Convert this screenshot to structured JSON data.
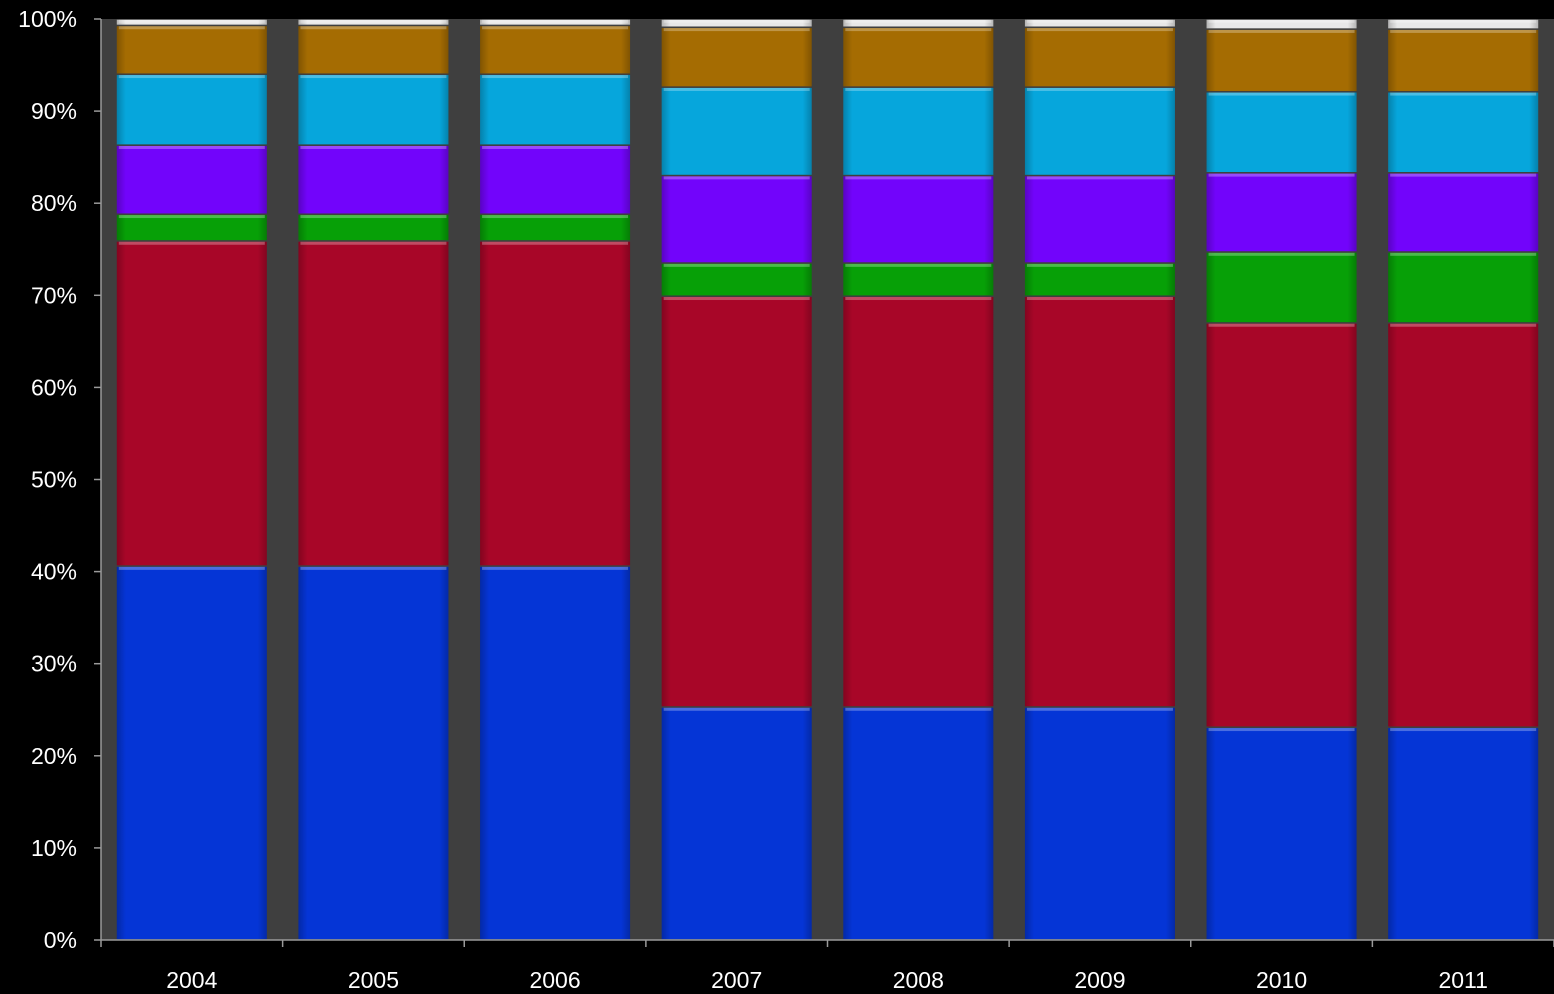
{
  "chart_data": {
    "type": "bar",
    "stacked": true,
    "percent_scale": true,
    "title": "",
    "xlabel": "",
    "ylabel": "",
    "ylim": [
      0,
      100
    ],
    "y_tick_labels": [
      "0%",
      "10%",
      "20%",
      "30%",
      "40%",
      "50%",
      "60%",
      "70%",
      "80%",
      "90%",
      "100%"
    ],
    "categories": [
      "2004",
      "2005",
      "2006",
      "2007",
      "2008",
      "2009",
      "2010",
      "2011"
    ],
    "grid": false,
    "legend": "none",
    "plot_background": "#3f3f3f",
    "series": [
      {
        "color": "#0535d6",
        "values": [
          40.6,
          40.6,
          40.6,
          25.3,
          25.3,
          25.3,
          23.1,
          23.1
        ]
      },
      {
        "color": "#a80628",
        "values": [
          35.3,
          35.3,
          35.3,
          44.6,
          44.6,
          44.6,
          43.9,
          43.9
        ]
      },
      {
        "color": "#07a007",
        "values": [
          2.9,
          2.9,
          2.9,
          3.6,
          3.6,
          3.6,
          7.7,
          7.7
        ]
      },
      {
        "color": "#7204fb",
        "values": [
          7.5,
          7.5,
          7.5,
          9.5,
          9.5,
          9.5,
          8.6,
          8.6
        ]
      },
      {
        "color": "#06a6dc",
        "values": [
          7.7,
          7.7,
          7.7,
          9.6,
          9.6,
          9.6,
          8.8,
          8.8
        ]
      },
      {
        "color": "#a56c02",
        "values": [
          5.3,
          5.3,
          5.3,
          6.5,
          6.5,
          6.5,
          6.8,
          6.8
        ]
      },
      {
        "color": "#e8e8e8",
        "values": [
          0.7,
          0.7,
          0.7,
          0.9,
          0.9,
          0.9,
          1.1,
          1.1
        ]
      }
    ]
  }
}
